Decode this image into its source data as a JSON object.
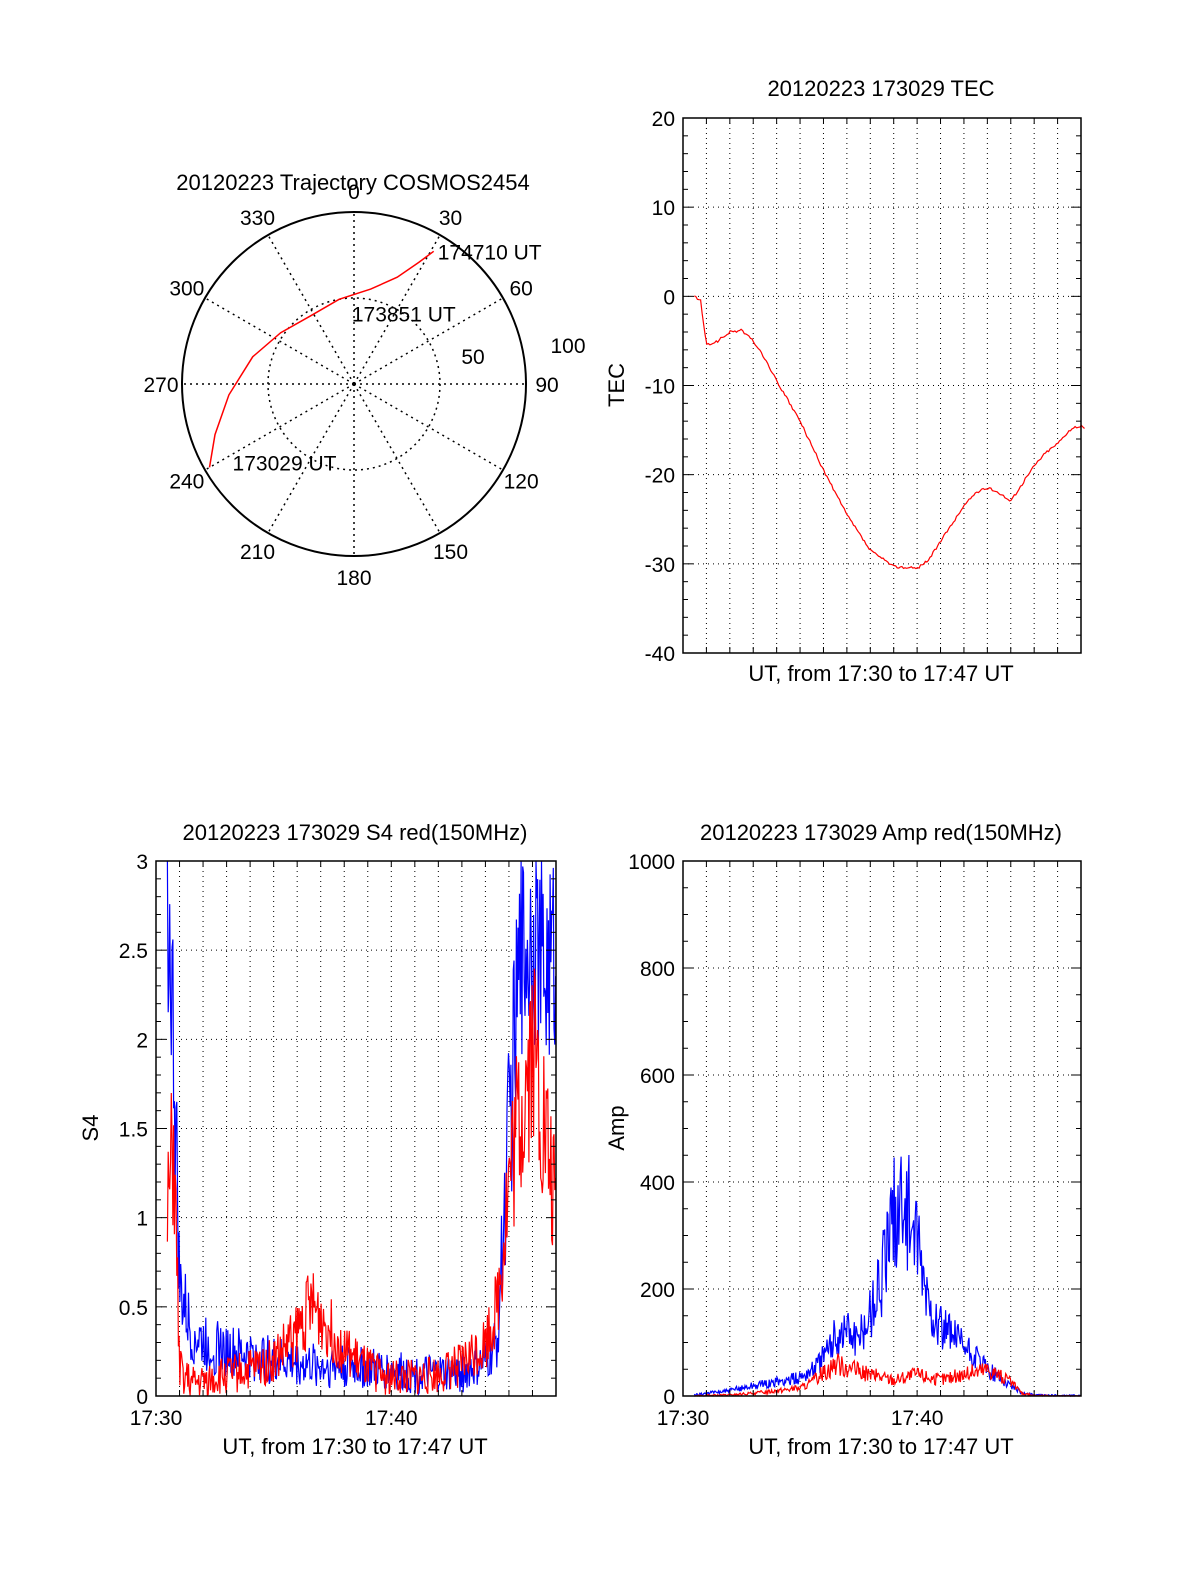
{
  "chart_data": [
    {
      "type": "polar",
      "title": "20120223 Trajectory COSMOS2454",
      "azimuth_labels": [
        "0",
        "30",
        "60",
        "90",
        "120",
        "150",
        "180",
        "210",
        "240",
        "270",
        "300",
        "330"
      ],
      "radial_labels": [
        "50",
        "100"
      ],
      "rlim": [
        0,
        100
      ],
      "grid": true,
      "series": [
        {
          "color": "#ff0000",
          "points": [
            [
              240,
              97
            ],
            [
              250,
              86
            ],
            [
              265,
              73
            ],
            [
              285,
              61
            ],
            [
              305,
              52
            ],
            [
              327,
              47
            ],
            [
              350,
              50
            ],
            [
              10,
              56
            ],
            [
              22,
              67
            ],
            [
              28,
              80
            ],
            [
              31,
              90
            ]
          ]
        }
      ],
      "annotations": [
        {
          "text": "174710 UT",
          "az": 31,
          "r": 90
        },
        {
          "text": "173851 UT",
          "az": 355,
          "r": 41
        },
        {
          "text": "173029 UT",
          "az": 238,
          "r": 86
        }
      ]
    },
    {
      "type": "line",
      "title": "20120223 173029 TEC",
      "xlabel": "UT, from 17:30 to 17:47 UT",
      "ylabel": "TEC",
      "xlim": [
        "17:30",
        "17:47"
      ],
      "ylim": [
        -40,
        20
      ],
      "yticks": [
        20,
        10,
        0,
        -10,
        -20,
        -30,
        -40
      ],
      "grid": true,
      "series": [
        {
          "color": "#ff0000",
          "x": [
            "17:30:29",
            "17:30:45",
            "17:31:00",
            "17:31:30",
            "17:32:00",
            "17:32:30",
            "17:33:00",
            "17:33:30",
            "17:34:00",
            "17:35:00",
            "17:36:00",
            "17:37:00",
            "17:38:00",
            "17:39:00",
            "17:40:00",
            "17:40:30",
            "17:41:00",
            "17:41:30",
            "17:42:00",
            "17:42:30",
            "17:43:00",
            "17:43:30",
            "17:44:00",
            "17:44:30",
            "17:45:00",
            "17:45:30",
            "17:46:00",
            "17:46:30",
            "17:47:00",
            "17:47:10"
          ],
          "y": [
            0,
            -0.5,
            -5.5,
            -5,
            -4,
            -3.8,
            -5,
            -7,
            -9.5,
            -14,
            -19.5,
            -24.5,
            -28.5,
            -30.3,
            -30.5,
            -29.5,
            -27.5,
            -25.5,
            -23.5,
            -22,
            -21.5,
            -22,
            -23,
            -21,
            -19,
            -17.5,
            -16.5,
            -15,
            -14.5,
            -15
          ]
        }
      ]
    },
    {
      "type": "line",
      "title": "20120223 173029 S4 red(150MHz)",
      "xlabel": "UT, from 17:30 to 17:47 UT",
      "ylabel": "S4",
      "xlim": [
        "17:30",
        "17:47"
      ],
      "ylim": [
        0,
        3
      ],
      "xticks": [
        "17:30",
        "17:40"
      ],
      "yticks": [
        3,
        2.5,
        2,
        1.5,
        1,
        0.5,
        0
      ],
      "grid": true,
      "series": [
        {
          "color": "#0000ff",
          "x": [
            "17:30:29",
            "17:30:45",
            "17:31:00",
            "17:31:30",
            "17:32:00",
            "17:33:00",
            "17:34:00",
            "17:35:00",
            "17:36:00",
            "17:37:00",
            "17:38:00",
            "17:39:00",
            "17:40:00",
            "17:41:00",
            "17:42:00",
            "17:43:00",
            "17:44:00",
            "17:44:30",
            "17:45:00",
            "17:45:30",
            "17:46:00",
            "17:46:30",
            "17:47:00"
          ],
          "y": [
            2.8,
            2.0,
            0.6,
            0.35,
            0.3,
            0.25,
            0.22,
            0.2,
            0.18,
            0.17,
            0.17,
            0.15,
            0.14,
            0.12,
            0.12,
            0.13,
            0.18,
            0.3,
            1.5,
            2.5,
            2.6,
            2.4,
            2.5
          ]
        },
        {
          "color": "#ff0000",
          "x": [
            "17:30:29",
            "17:30:45",
            "17:31:00",
            "17:31:30",
            "17:32:00",
            "17:33:00",
            "17:34:00",
            "17:35:00",
            "17:36:00",
            "17:36:30",
            "17:37:00",
            "17:37:30",
            "17:38:00",
            "17:39:00",
            "17:40:00",
            "17:41:00",
            "17:42:00",
            "17:43:00",
            "17:44:00",
            "17:44:30",
            "17:45:00",
            "17:45:30",
            "17:46:00",
            "17:46:30",
            "17:47:00"
          ],
          "y": [
            1.0,
            1.4,
            0.15,
            0.07,
            0.08,
            0.12,
            0.15,
            0.2,
            0.35,
            0.5,
            0.45,
            0.35,
            0.25,
            0.15,
            0.1,
            0.1,
            0.12,
            0.18,
            0.3,
            0.5,
            1.2,
            1.6,
            2.0,
            1.5,
            1.0
          ]
        }
      ]
    },
    {
      "type": "line",
      "title": "20120223 173029 Amp red(150MHz)",
      "xlabel": "UT, from 17:30 to 17:47 UT",
      "ylabel": "Amp",
      "xlim": [
        "17:30",
        "17:47"
      ],
      "ylim": [
        0,
        1000
      ],
      "xticks": [
        "17:30",
        "17:40"
      ],
      "yticks": [
        1000,
        800,
        600,
        400,
        200,
        0
      ],
      "grid": true,
      "series": [
        {
          "color": "#0000ff",
          "x": [
            "17:30:29",
            "17:31:00",
            "17:32:00",
            "17:33:00",
            "17:34:00",
            "17:35:00",
            "17:35:30",
            "17:36:00",
            "17:36:30",
            "17:37:00",
            "17:37:30",
            "17:38:00",
            "17:38:30",
            "17:39:00",
            "17:39:30",
            "17:40:00",
            "17:40:30",
            "17:41:00",
            "17:41:30",
            "17:42:00",
            "17:42:30",
            "17:43:00",
            "17:43:30",
            "17:44:00",
            "17:44:30",
            "17:45:00",
            "17:46:00",
            "17:47:00"
          ],
          "y": [
            2,
            5,
            10,
            20,
            25,
            35,
            50,
            70,
            110,
            130,
            100,
            160,
            230,
            330,
            380,
            270,
            170,
            130,
            110,
            90,
            70,
            50,
            35,
            20,
            5,
            2,
            1,
            1
          ]
        },
        {
          "color": "#ff0000",
          "x": [
            "17:30:29",
            "17:31:00",
            "17:32:00",
            "17:33:00",
            "17:34:00",
            "17:35:00",
            "17:35:30",
            "17:36:00",
            "17:36:30",
            "17:37:00",
            "17:37:30",
            "17:38:00",
            "17:38:30",
            "17:39:00",
            "17:39:30",
            "17:40:00",
            "17:40:30",
            "17:41:00",
            "17:41:30",
            "17:42:00",
            "17:42:30",
            "17:43:00",
            "17:43:30",
            "17:44:00",
            "17:44:30",
            "17:45:00",
            "17:46:00",
            "17:47:00"
          ],
          "y": [
            0,
            1,
            2,
            5,
            10,
            15,
            25,
            45,
            60,
            55,
            45,
            40,
            35,
            30,
            35,
            40,
            35,
            30,
            35,
            40,
            45,
            50,
            40,
            25,
            5,
            1,
            0,
            0
          ]
        }
      ]
    }
  ]
}
